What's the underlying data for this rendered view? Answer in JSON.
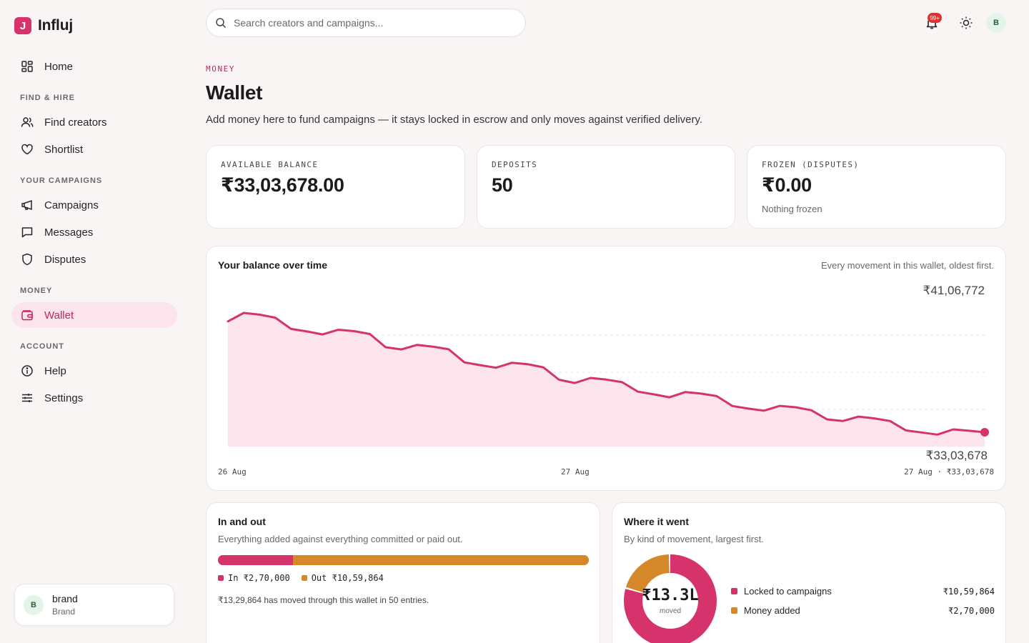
{
  "app": {
    "name": "Influj",
    "logo_letter": "J"
  },
  "search": {
    "placeholder": "Search creators and campaigns..."
  },
  "topbar": {
    "notifications_badge": "99+",
    "avatar_initial": "B"
  },
  "sidebar": {
    "home": "Home",
    "section_find": "FIND & HIRE",
    "find_creators": "Find creators",
    "shortlist": "Shortlist",
    "section_campaigns": "YOUR CAMPAIGNS",
    "campaigns": "Campaigns",
    "messages": "Messages",
    "disputes": "Disputes",
    "section_money": "MONEY",
    "wallet": "Wallet",
    "section_account": "ACCOUNT",
    "help": "Help",
    "settings": "Settings"
  },
  "account": {
    "initial": "B",
    "name": "brand",
    "role": "Brand"
  },
  "header": {
    "eyebrow": "MONEY",
    "title": "Wallet",
    "subtitle": "Add money here to fund campaigns — it stays locked in escrow and only moves against verified delivery."
  },
  "stats": {
    "available": {
      "label": "AVAILABLE BALANCE",
      "value": "₹33,03,678.00"
    },
    "deposits": {
      "label": "DEPOSITS",
      "value": "50"
    },
    "frozen": {
      "label": "FROZEN (DISPUTES)",
      "value": "₹0.00",
      "note": "Nothing frozen"
    }
  },
  "balance_chart": {
    "title": "Your balance over time",
    "note": "Every movement in this wallet, oldest first.",
    "max_label": "₹41,06,772",
    "min_label": "₹33,03,678",
    "x_start": "26 Aug",
    "x_mid": "27 Aug",
    "x_end": "27 Aug · ₹33,03,678"
  },
  "chart_data": {
    "type": "area",
    "title": "Your balance over time",
    "x_labels": [
      "26 Aug",
      "27 Aug",
      "27 Aug"
    ],
    "ylim": [
      3303678,
      4106772
    ],
    "grid": "dashed horizontal",
    "color": "#d6336c",
    "values": [
      4050000,
      4106772,
      4095000,
      4075000,
      3999000,
      3982000,
      3962000,
      3994000,
      3984000,
      3965000,
      3876000,
      3861000,
      3892000,
      3880000,
      3862000,
      3774000,
      3755000,
      3738000,
      3771000,
      3762000,
      3741000,
      3657000,
      3635000,
      3669000,
      3658000,
      3641000,
      3577000,
      3559000,
      3539000,
      3574000,
      3564000,
      3547000,
      3480000,
      3463000,
      3449000,
      3481000,
      3472000,
      3452000,
      3390000,
      3379000,
      3409000,
      3397000,
      3379000,
      3316000,
      3302000,
      3288000,
      3323000,
      3314000,
      3303678
    ]
  },
  "in_out": {
    "title": "In and out",
    "subtitle": "Everything added against everything committed or paid out.",
    "in_label": "In ₹2,70,000",
    "out_label": "Out ₹10,59,864",
    "in_value": 270000,
    "out_value": 1059864,
    "in_color": "#d6336c",
    "out_color": "#d4882a",
    "note": "₹13,29,864 has moved through this wallet in 50 entries."
  },
  "where_it_went": {
    "title": "Where it went",
    "subtitle": "By kind of movement, largest first.",
    "total": "₹13.3L",
    "total_caption": "moved",
    "items": [
      {
        "label": "Locked to campaigns",
        "amount": "₹10,59,864",
        "value": 1059864,
        "color": "#d6336c"
      },
      {
        "label": "Money added",
        "amount": "₹2,70,000",
        "value": 270000,
        "color": "#d4882a"
      }
    ]
  }
}
